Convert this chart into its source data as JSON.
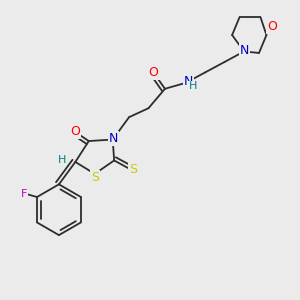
{
  "background_color": "#ebebeb",
  "bond_color": "#2d2d2d",
  "atom_colors": {
    "O": "#ff0000",
    "N": "#0000cc",
    "S": "#cccc00",
    "F": "#cc00cc",
    "H": "#008080",
    "C": "#2d2d2d"
  },
  "figsize": [
    3.0,
    3.0
  ],
  "dpi": 100
}
